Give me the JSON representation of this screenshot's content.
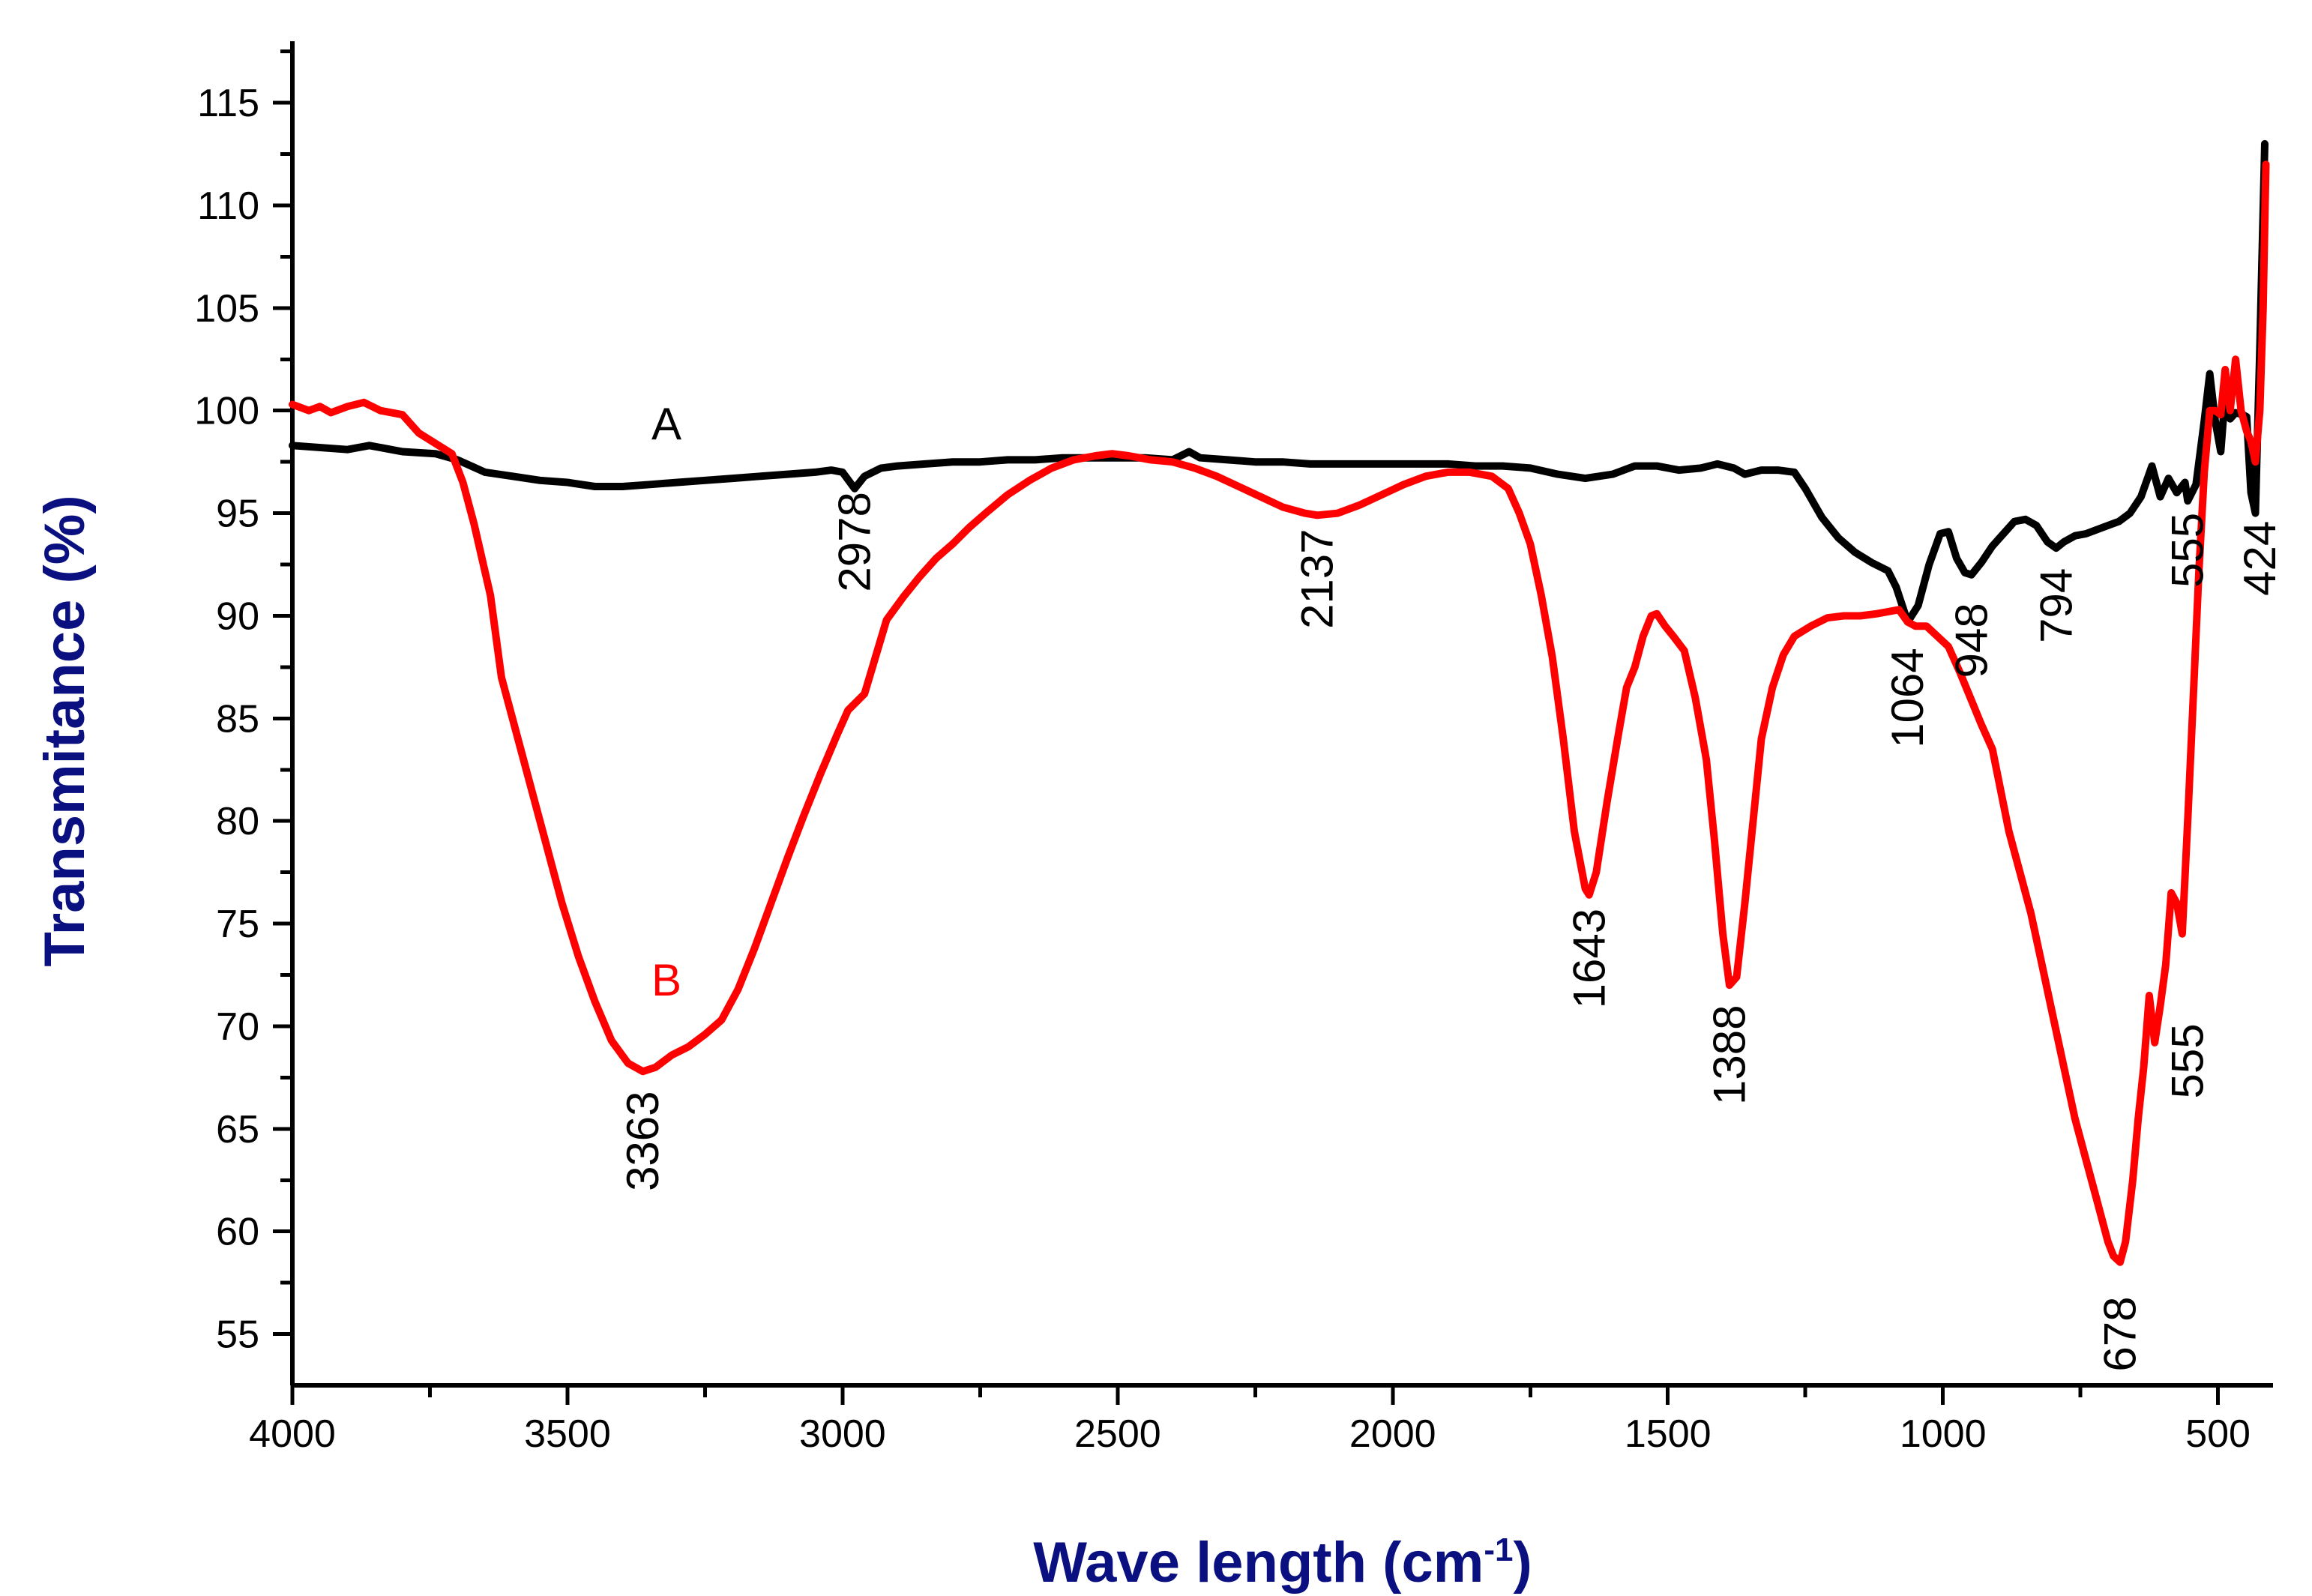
{
  "chart_data": {
    "type": "line",
    "title": "",
    "xlabel": "Wave length (cm",
    "xlabel_superscript": "-1",
    "xlabel_close": ")",
    "ylabel": "Transmitance (%)",
    "xlim": [
      4000,
      400
    ],
    "ylim": [
      52.5,
      118
    ],
    "x_ticks": [
      4000,
      3500,
      3000,
      2500,
      2000,
      1500,
      1000,
      500
    ],
    "y_ticks": [
      55,
      60,
      65,
      70,
      75,
      80,
      85,
      90,
      95,
      100,
      105,
      110,
      115
    ],
    "x_tick_labels": [
      "4000",
      "3500",
      "3000",
      "2500",
      "2000",
      "1500",
      "1000",
      "500"
    ],
    "y_tick_labels": [
      "55",
      "60",
      "65",
      "70",
      "75",
      "80",
      "85",
      "90",
      "95",
      "100",
      "105",
      "110",
      "115"
    ],
    "legend": "none",
    "grid": false,
    "colors": {
      "axis": "#000000",
      "axis_title": "#0a1080",
      "series_a": "#000000",
      "series_b": "#ff0000"
    },
    "series": [
      {
        "name": "A",
        "color": "#000000",
        "label_at": [
          3320,
          98.6
        ],
        "points": [
          [
            4000,
            98.3
          ],
          [
            3900,
            98.1
          ],
          [
            3860,
            98.3
          ],
          [
            3800,
            98.0
          ],
          [
            3740,
            97.9
          ],
          [
            3700,
            97.6
          ],
          [
            3650,
            97.0
          ],
          [
            3600,
            96.8
          ],
          [
            3550,
            96.6
          ],
          [
            3500,
            96.5
          ],
          [
            3450,
            96.3
          ],
          [
            3400,
            96.3
          ],
          [
            3350,
            96.4
          ],
          [
            3300,
            96.5
          ],
          [
            3250,
            96.6
          ],
          [
            3200,
            96.7
          ],
          [
            3150,
            96.8
          ],
          [
            3100,
            96.9
          ],
          [
            3050,
            97.0
          ],
          [
            3020,
            97.1
          ],
          [
            3000,
            97.0
          ],
          [
            2978,
            96.2
          ],
          [
            2960,
            96.8
          ],
          [
            2930,
            97.2
          ],
          [
            2900,
            97.3
          ],
          [
            2850,
            97.4
          ],
          [
            2800,
            97.5
          ],
          [
            2750,
            97.5
          ],
          [
            2700,
            97.6
          ],
          [
            2650,
            97.6
          ],
          [
            2600,
            97.7
          ],
          [
            2550,
            97.7
          ],
          [
            2500,
            97.7
          ],
          [
            2450,
            97.7
          ],
          [
            2400,
            97.6
          ],
          [
            2370,
            98.0
          ],
          [
            2350,
            97.7
          ],
          [
            2300,
            97.6
          ],
          [
            2250,
            97.5
          ],
          [
            2200,
            97.5
          ],
          [
            2150,
            97.4
          ],
          [
            2100,
            97.4
          ],
          [
            2050,
            97.4
          ],
          [
            2000,
            97.4
          ],
          [
            1950,
            97.4
          ],
          [
            1900,
            97.4
          ],
          [
            1850,
            97.3
          ],
          [
            1800,
            97.3
          ],
          [
            1750,
            97.2
          ],
          [
            1700,
            96.9
          ],
          [
            1650,
            96.7
          ],
          [
            1600,
            96.9
          ],
          [
            1560,
            97.3
          ],
          [
            1520,
            97.3
          ],
          [
            1480,
            97.1
          ],
          [
            1440,
            97.2
          ],
          [
            1410,
            97.4
          ],
          [
            1380,
            97.2
          ],
          [
            1360,
            96.9
          ],
          [
            1330,
            97.1
          ],
          [
            1300,
            97.1
          ],
          [
            1270,
            97.0
          ],
          [
            1250,
            96.2
          ],
          [
            1220,
            94.8
          ],
          [
            1190,
            93.8
          ],
          [
            1160,
            93.1
          ],
          [
            1130,
            92.6
          ],
          [
            1100,
            92.2
          ],
          [
            1085,
            91.4
          ],
          [
            1064,
            89.7
          ],
          [
            1045,
            90.5
          ],
          [
            1025,
            92.5
          ],
          [
            1005,
            94.0
          ],
          [
            990,
            94.1
          ],
          [
            975,
            92.8
          ],
          [
            960,
            92.1
          ],
          [
            948,
            92.0
          ],
          [
            930,
            92.6
          ],
          [
            910,
            93.4
          ],
          [
            890,
            94.0
          ],
          [
            870,
            94.6
          ],
          [
            850,
            94.7
          ],
          [
            830,
            94.4
          ],
          [
            810,
            93.6
          ],
          [
            794,
            93.3
          ],
          [
            780,
            93.6
          ],
          [
            760,
            93.9
          ],
          [
            740,
            94.0
          ],
          [
            720,
            94.2
          ],
          [
            700,
            94.4
          ],
          [
            680,
            94.6
          ],
          [
            660,
            95.0
          ],
          [
            640,
            95.8
          ],
          [
            620,
            97.3
          ],
          [
            605,
            95.8
          ],
          [
            590,
            96.7
          ],
          [
            575,
            96.0
          ],
          [
            560,
            96.5
          ],
          [
            555,
            95.6
          ],
          [
            540,
            96.4
          ],
          [
            525,
            99.5
          ],
          [
            515,
            101.8
          ],
          [
            505,
            99.5
          ],
          [
            495,
            98.0
          ],
          [
            487,
            100.8
          ],
          [
            478,
            99.6
          ],
          [
            468,
            99.9
          ],
          [
            455,
            99.8
          ],
          [
            448,
            99.7
          ],
          [
            440,
            96.0
          ],
          [
            432,
            95.0
          ],
          [
            424,
            103.0
          ],
          [
            415,
            113.0
          ]
        ]
      },
      {
        "name": "B",
        "color": "#ff0000",
        "label_at": [
          3320,
          71.5
        ],
        "points": [
          [
            4000,
            100.3
          ],
          [
            3970,
            100.0
          ],
          [
            3950,
            100.2
          ],
          [
            3930,
            99.9
          ],
          [
            3900,
            100.2
          ],
          [
            3870,
            100.4
          ],
          [
            3840,
            100.0
          ],
          [
            3800,
            99.8
          ],
          [
            3770,
            98.9
          ],
          [
            3740,
            98.4
          ],
          [
            3710,
            97.9
          ],
          [
            3690,
            96.5
          ],
          [
            3670,
            94.5
          ],
          [
            3640,
            91.0
          ],
          [
            3620,
            87.0
          ],
          [
            3600,
            85.0
          ],
          [
            3570,
            82.0
          ],
          [
            3540,
            79.0
          ],
          [
            3510,
            76.0
          ],
          [
            3480,
            73.4
          ],
          [
            3450,
            71.2
          ],
          [
            3420,
            69.3
          ],
          [
            3390,
            68.2
          ],
          [
            3363,
            67.8
          ],
          [
            3340,
            68.0
          ],
          [
            3310,
            68.6
          ],
          [
            3280,
            69.0
          ],
          [
            3250,
            69.6
          ],
          [
            3220,
            70.3
          ],
          [
            3190,
            71.8
          ],
          [
            3160,
            73.8
          ],
          [
            3130,
            76.0
          ],
          [
            3100,
            78.2
          ],
          [
            3070,
            80.3
          ],
          [
            3040,
            82.3
          ],
          [
            3010,
            84.2
          ],
          [
            2990,
            85.4
          ],
          [
            2960,
            86.2
          ],
          [
            2940,
            88.0
          ],
          [
            2920,
            89.8
          ],
          [
            2890,
            90.9
          ],
          [
            2860,
            91.9
          ],
          [
            2830,
            92.8
          ],
          [
            2800,
            93.5
          ],
          [
            2770,
            94.3
          ],
          [
            2740,
            95.0
          ],
          [
            2700,
            95.9
          ],
          [
            2660,
            96.6
          ],
          [
            2620,
            97.2
          ],
          [
            2580,
            97.6
          ],
          [
            2540,
            97.8
          ],
          [
            2510,
            97.9
          ],
          [
            2480,
            97.8
          ],
          [
            2440,
            97.6
          ],
          [
            2400,
            97.5
          ],
          [
            2360,
            97.2
          ],
          [
            2320,
            96.8
          ],
          [
            2280,
            96.3
          ],
          [
            2240,
            95.8
          ],
          [
            2200,
            95.3
          ],
          [
            2160,
            95.0
          ],
          [
            2137,
            94.9
          ],
          [
            2100,
            95.0
          ],
          [
            2060,
            95.4
          ],
          [
            2020,
            95.9
          ],
          [
            1980,
            96.4
          ],
          [
            1940,
            96.8
          ],
          [
            1900,
            97.0
          ],
          [
            1860,
            97.0
          ],
          [
            1820,
            96.8
          ],
          [
            1790,
            96.2
          ],
          [
            1770,
            95.0
          ],
          [
            1750,
            93.5
          ],
          [
            1730,
            91.0
          ],
          [
            1710,
            88.0
          ],
          [
            1690,
            84.0
          ],
          [
            1670,
            79.5
          ],
          [
            1650,
            76.7
          ],
          [
            1643,
            76.4
          ],
          [
            1630,
            77.5
          ],
          [
            1610,
            81.0
          ],
          [
            1590,
            84.2
          ],
          [
            1575,
            86.5
          ],
          [
            1560,
            87.5
          ],
          [
            1545,
            89.0
          ],
          [
            1530,
            90.0
          ],
          [
            1520,
            90.1
          ],
          [
            1505,
            89.5
          ],
          [
            1490,
            89.0
          ],
          [
            1470,
            88.3
          ],
          [
            1450,
            86.0
          ],
          [
            1430,
            83.0
          ],
          [
            1415,
            79.0
          ],
          [
            1400,
            74.5
          ],
          [
            1388,
            72.0
          ],
          [
            1375,
            72.4
          ],
          [
            1360,
            76.0
          ],
          [
            1345,
            80.0
          ],
          [
            1330,
            84.0
          ],
          [
            1310,
            86.5
          ],
          [
            1290,
            88.1
          ],
          [
            1270,
            89.0
          ],
          [
            1240,
            89.5
          ],
          [
            1210,
            89.9
          ],
          [
            1180,
            90.0
          ],
          [
            1150,
            90.0
          ],
          [
            1120,
            90.1
          ],
          [
            1100,
            90.2
          ],
          [
            1080,
            90.3
          ],
          [
            1064,
            89.7
          ],
          [
            1050,
            89.5
          ],
          [
            1030,
            89.5
          ],
          [
            1010,
            89.0
          ],
          [
            990,
            88.5
          ],
          [
            970,
            87.3
          ],
          [
            950,
            86.0
          ],
          [
            930,
            84.7
          ],
          [
            910,
            83.5
          ],
          [
            895,
            81.5
          ],
          [
            880,
            79.5
          ],
          [
            860,
            77.5
          ],
          [
            840,
            75.5
          ],
          [
            820,
            73.0
          ],
          [
            800,
            70.5
          ],
          [
            780,
            68.0
          ],
          [
            760,
            65.5
          ],
          [
            740,
            63.5
          ],
          [
            720,
            61.5
          ],
          [
            700,
            59.5
          ],
          [
            690,
            58.8
          ],
          [
            678,
            58.5
          ],
          [
            668,
            59.5
          ],
          [
            655,
            62.5
          ],
          [
            645,
            65.5
          ],
          [
            635,
            68.0
          ],
          [
            625,
            71.5
          ],
          [
            615,
            69.2
          ],
          [
            605,
            71.0
          ],
          [
            595,
            73.0
          ],
          [
            585,
            76.5
          ],
          [
            575,
            76.0
          ],
          [
            565,
            74.5
          ],
          [
            555,
            80.0
          ],
          [
            545,
            86.0
          ],
          [
            535,
            92.0
          ],
          [
            525,
            97.0
          ],
          [
            515,
            100.0
          ],
          [
            505,
            100.0
          ],
          [
            495,
            99.8
          ],
          [
            487,
            102.0
          ],
          [
            478,
            100.0
          ],
          [
            468,
            102.5
          ],
          [
            458,
            100.0
          ],
          [
            448,
            99.0
          ],
          [
            440,
            98.5
          ],
          [
            432,
            97.5
          ],
          [
            424,
            100.0
          ],
          [
            418,
            105.0
          ],
          [
            413,
            112.0
          ]
        ]
      }
    ],
    "annotations": [
      {
        "text": "2978",
        "x": 2978,
        "y": 93.6,
        "color": "#000000"
      },
      {
        "text": "2137",
        "x": 2137,
        "y": 91.8,
        "color": "#000000"
      },
      {
        "text": "3363",
        "x": 3363,
        "y": 64.4,
        "color": "#000000"
      },
      {
        "text": "1643",
        "x": 1643,
        "y": 73.3,
        "color": "#000000"
      },
      {
        "text": "1388",
        "x": 1388,
        "y": 68.6,
        "color": "#000000"
      },
      {
        "text": "1064",
        "x": 1064,
        "y": 86.0,
        "color": "#000000"
      },
      {
        "text": "948",
        "x": 948,
        "y": 88.8,
        "color": "#000000"
      },
      {
        "text": "794",
        "x": 794,
        "y": 90.5,
        "color": "#000000"
      },
      {
        "text": "555",
        "x": 555,
        "y": 93.2,
        "color": "#000000"
      },
      {
        "text": "424",
        "x": 424,
        "y": 92.8,
        "color": "#000000"
      },
      {
        "text": "555",
        "x": 555,
        "y": 68.3,
        "color": "#000000"
      },
      {
        "text": "678",
        "x": 678,
        "y": 55.0,
        "color": "#000000"
      }
    ]
  }
}
